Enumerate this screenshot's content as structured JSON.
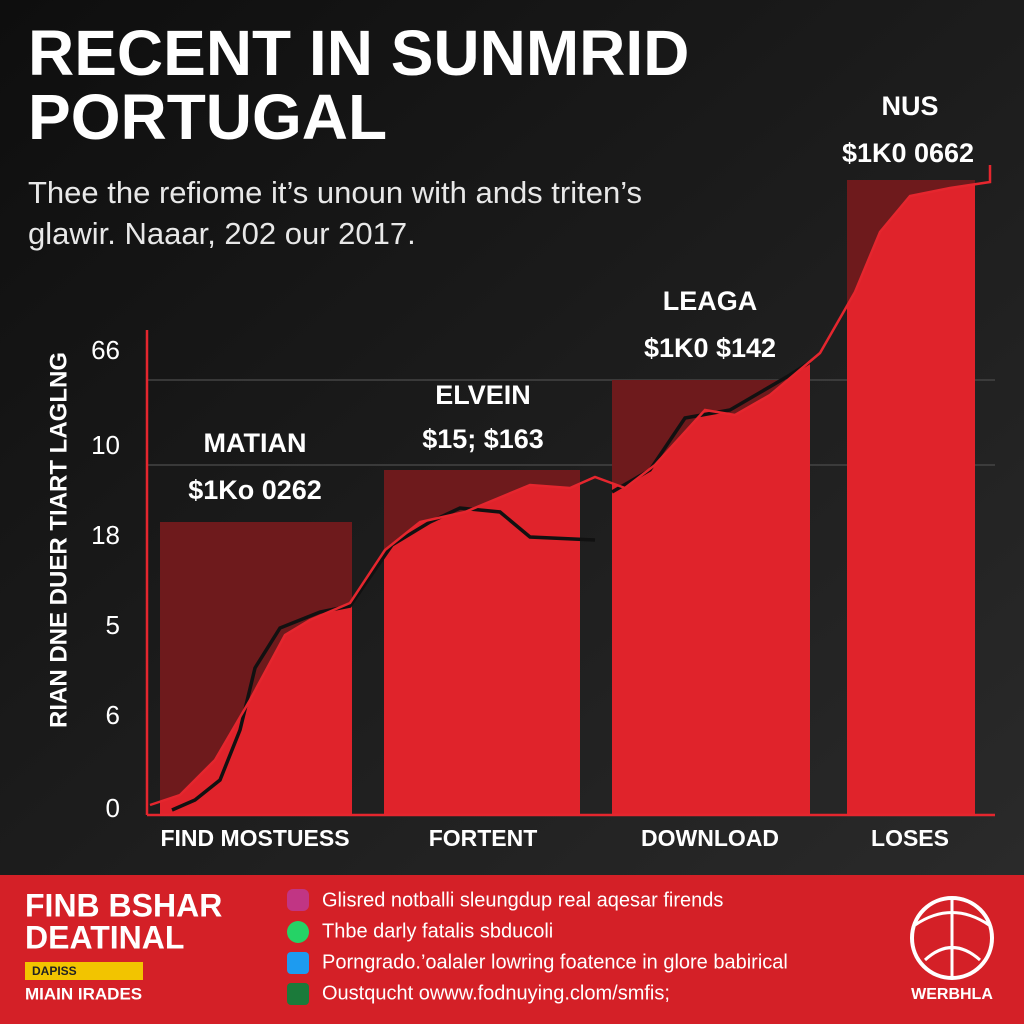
{
  "header": {
    "title_lines": [
      "RECENT IN SUNMRID",
      "PORTUGAL"
    ],
    "subtitle_lines": [
      "Thee the refiome it’s unoun with ands triten’s",
      "glawir. Naaar, 202 our 2017."
    ]
  },
  "chart": {
    "y_axis_title": "RIAN DNE DUER TIART LAGLNG",
    "y_axis_labels": [
      "66",
      "10",
      "18",
      "5",
      "6",
      "0"
    ],
    "groups": [
      {
        "name": "MATIAN",
        "amount": "$1Ko 0262",
        "category": "FIND MOSTUESS"
      },
      {
        "name": "ELVEIN",
        "amount": "$15; $163",
        "category": "FORTENT"
      },
      {
        "name": "LEAGA",
        "amount": "$1K0 $142",
        "category": "DOWNLOAD"
      },
      {
        "name": "NUS",
        "amount": "$1K0 0662",
        "category": "LOSES"
      }
    ]
  },
  "footer": {
    "brand_lines": [
      "FINB BSHAR",
      "DEATINAL"
    ],
    "badge": "DAPISS",
    "tagline": "MIAIN IRADES",
    "items": [
      "Glisred notballi sleungdup real aqesar firends",
      "Thbe darly fatalis sbducoli",
      "Porngrado.’oalaler lowring foatence in glore babirical",
      "Oustqucht owww.fodnuying.clom/smfis;"
    ],
    "logo_text": "WERBHLA"
  }
}
